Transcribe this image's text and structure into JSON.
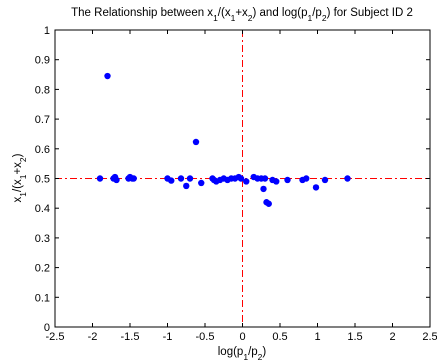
{
  "chart_data": {
    "type": "scatter",
    "title": {
      "parts": [
        {
          "t": "The Relationship between x",
          "sub": false
        },
        {
          "t": "1",
          "sub": true
        },
        {
          "t": "/(x",
          "sub": false
        },
        {
          "t": "1",
          "sub": true
        },
        {
          "t": "+x",
          "sub": false
        },
        {
          "t": "2",
          "sub": true
        },
        {
          "t": ") and log(p",
          "sub": false
        },
        {
          "t": "1",
          "sub": true
        },
        {
          "t": "/p",
          "sub": false
        },
        {
          "t": "2",
          "sub": true
        },
        {
          "t": ") for Subject ID 2",
          "sub": false
        }
      ]
    },
    "xlabel": {
      "parts": [
        {
          "t": "log(p",
          "sub": false
        },
        {
          "t": "1",
          "sub": true
        },
        {
          "t": "/p",
          "sub": false
        },
        {
          "t": "2",
          "sub": true
        },
        {
          "t": ")",
          "sub": false
        }
      ]
    },
    "ylabel": {
      "parts": [
        {
          "t": "x",
          "sub": false
        },
        {
          "t": "1",
          "sub": true
        },
        {
          "t": "/(x",
          "sub": false
        },
        {
          "t": "1",
          "sub": true
        },
        {
          "t": "+x",
          "sub": false
        },
        {
          "t": "2",
          "sub": true
        },
        {
          "t": ")",
          "sub": false
        }
      ]
    },
    "xlim": [
      -2.5,
      2.5
    ],
    "ylim": [
      0,
      1
    ],
    "xticks": [
      -2.5,
      -2,
      -1.5,
      -1,
      -0.5,
      0,
      0.5,
      1,
      1.5,
      2,
      2.5
    ],
    "xtick_labels": [
      "-2.5",
      "-2",
      "-1.5",
      "-1",
      "-0.5",
      "0",
      "0.5",
      "1",
      "1.5",
      "2",
      "2.5"
    ],
    "yticks": [
      0,
      0.1,
      0.2,
      0.3,
      0.4,
      0.5,
      0.6,
      0.7,
      0.8,
      0.9,
      1
    ],
    "ytick_labels": [
      "0",
      "0.1",
      "0.2",
      "0.3",
      "0.4",
      "0.5",
      "0.6",
      "0.7",
      "0.8",
      "0.9",
      "1"
    ],
    "grid": false,
    "marker_color": "#0000ff",
    "reference_line_color": "#ff0000",
    "reference_lines": {
      "vertical_x": 0,
      "horizontal_y": 0.5,
      "style": "dash-dot"
    },
    "points": [
      {
        "x": -1.9,
        "y": 0.5
      },
      {
        "x": -1.8,
        "y": 0.845
      },
      {
        "x": -1.72,
        "y": 0.5
      },
      {
        "x": -1.7,
        "y": 0.505
      },
      {
        "x": -1.68,
        "y": 0.495
      },
      {
        "x": -1.52,
        "y": 0.5
      },
      {
        "x": -1.5,
        "y": 0.505
      },
      {
        "x": -1.47,
        "y": 0.5
      },
      {
        "x": -1.45,
        "y": 0.5
      },
      {
        "x": -1.0,
        "y": 0.5
      },
      {
        "x": -0.95,
        "y": 0.493
      },
      {
        "x": -0.82,
        "y": 0.5
      },
      {
        "x": -0.75,
        "y": 0.475
      },
      {
        "x": -0.7,
        "y": 0.5
      },
      {
        "x": -0.62,
        "y": 0.623
      },
      {
        "x": -0.55,
        "y": 0.485
      },
      {
        "x": -0.4,
        "y": 0.5
      },
      {
        "x": -0.38,
        "y": 0.495
      },
      {
        "x": -0.35,
        "y": 0.49
      },
      {
        "x": -0.3,
        "y": 0.495
      },
      {
        "x": -0.25,
        "y": 0.5
      },
      {
        "x": -0.2,
        "y": 0.495
      },
      {
        "x": -0.15,
        "y": 0.5
      },
      {
        "x": -0.1,
        "y": 0.5
      },
      {
        "x": -0.05,
        "y": 0.505
      },
      {
        "x": -0.02,
        "y": 0.5
      },
      {
        "x": 0.05,
        "y": 0.49
      },
      {
        "x": 0.15,
        "y": 0.505
      },
      {
        "x": 0.2,
        "y": 0.5
      },
      {
        "x": 0.25,
        "y": 0.5
      },
      {
        "x": 0.28,
        "y": 0.465
      },
      {
        "x": 0.3,
        "y": 0.5
      },
      {
        "x": 0.32,
        "y": 0.42
      },
      {
        "x": 0.35,
        "y": 0.415
      },
      {
        "x": 0.4,
        "y": 0.495
      },
      {
        "x": 0.45,
        "y": 0.49
      },
      {
        "x": 0.6,
        "y": 0.495
      },
      {
        "x": 0.8,
        "y": 0.495
      },
      {
        "x": 0.85,
        "y": 0.5
      },
      {
        "x": 0.98,
        "y": 0.47
      },
      {
        "x": 1.1,
        "y": 0.495
      },
      {
        "x": 1.4,
        "y": 0.5
      }
    ]
  }
}
